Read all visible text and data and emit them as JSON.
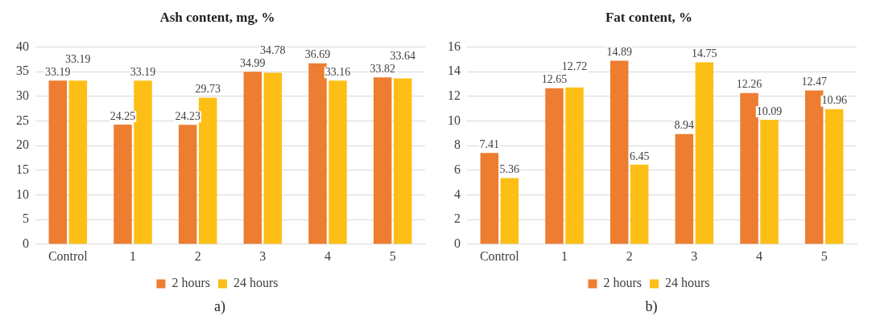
{
  "chart_data": [
    {
      "type": "bar",
      "title": "Ash content, mg, %",
      "categories": [
        "Control",
        "1",
        "2",
        "3",
        "4",
        "5"
      ],
      "series": [
        {
          "name": "2 hours",
          "color": "#ed7d31",
          "values": [
            33.19,
            24.25,
            24.23,
            34.99,
            36.69,
            33.82
          ]
        },
        {
          "name": "24 hours",
          "color": "#fdbf16",
          "values": [
            33.19,
            33.19,
            29.73,
            34.78,
            33.16,
            33.64
          ]
        }
      ],
      "ylim": [
        0,
        40
      ],
      "yticks": [
        0,
        5,
        10,
        15,
        20,
        25,
        30,
        35,
        40
      ],
      "grid": "y",
      "legend": "bottom",
      "data_labels": true,
      "annotations": [
        "a)"
      ]
    },
    {
      "type": "bar",
      "title": "Fat content, %",
      "categories": [
        "Control",
        "1",
        "2",
        "3",
        "4",
        "5"
      ],
      "series": [
        {
          "name": "2 hours",
          "color": "#ed7d31",
          "values": [
            7.41,
            12.65,
            14.89,
            8.94,
            12.26,
            12.47
          ]
        },
        {
          "name": "24 hours",
          "color": "#fdbf16",
          "values": [
            5.36,
            12.72,
            6.45,
            14.75,
            10.09,
            10.96
          ]
        }
      ],
      "ylim": [
        0,
        16
      ],
      "yticks": [
        0,
        2,
        4,
        6,
        8,
        10,
        12,
        14,
        16
      ],
      "grid": "y",
      "legend": "bottom",
      "data_labels": true,
      "annotations": [
        "b)"
      ]
    }
  ]
}
